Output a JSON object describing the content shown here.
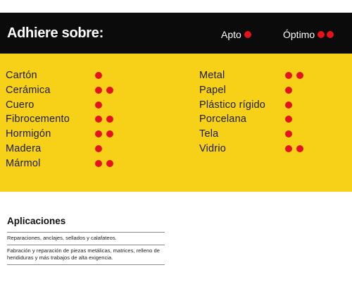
{
  "header": {
    "title": "Adhiere sobre:",
    "legend": [
      {
        "label": "Apto",
        "dots": 1
      },
      {
        "label": "Óptimo",
        "dots": 2
      }
    ]
  },
  "colors": {
    "dot": "#e3121b",
    "band": "#f7d117",
    "header_bg": "#0b0b0b"
  },
  "materials_left": [
    {
      "name": "Cartón",
      "rating": 1
    },
    {
      "name": "Cerámica",
      "rating": 2
    },
    {
      "name": "Cuero",
      "rating": 1
    },
    {
      "name": "Fibrocemento",
      "rating": 2
    },
    {
      "name": "Hormigón",
      "rating": 2
    },
    {
      "name": "Madera",
      "rating": 1
    },
    {
      "name": "Mármol",
      "rating": 2
    }
  ],
  "materials_right": [
    {
      "name": "Metal",
      "rating": 2
    },
    {
      "name": "Papel",
      "rating": 1
    },
    {
      "name": "Plástico rígido",
      "rating": 1
    },
    {
      "name": "Porcelana",
      "rating": 1
    },
    {
      "name": "Tela",
      "rating": 1
    },
    {
      "name": "Vidrio",
      "rating": 2
    }
  ],
  "applications": {
    "title": "Aplicaciones",
    "items": [
      "Reparaciones, anclajes, sellados y calafateos.",
      "Fabración y reparación de piezas metálicas, matrices, relleno de hendiduras y más trabajos de alta exigencia."
    ]
  }
}
